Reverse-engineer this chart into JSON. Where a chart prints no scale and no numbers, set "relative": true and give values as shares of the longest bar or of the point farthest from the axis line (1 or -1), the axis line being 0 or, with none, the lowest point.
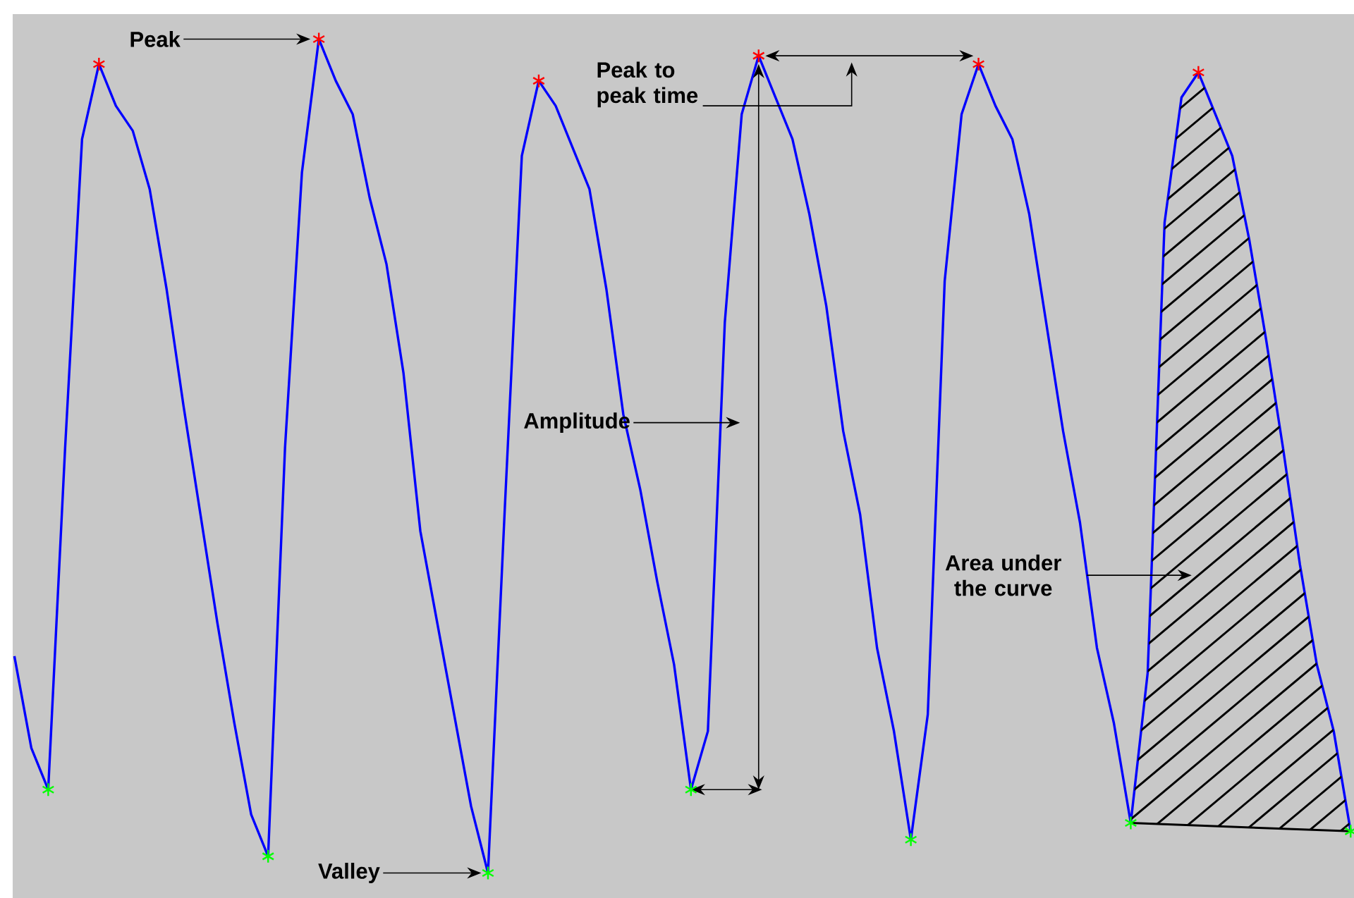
{
  "chart_data": {
    "type": "line",
    "relative": true,
    "categories": [
      null,
      null,
      null,
      null,
      null,
      null,
      null,
      null,
      null,
      null,
      null,
      null,
      null,
      null,
      null,
      null,
      null,
      null,
      null,
      null,
      null,
      null,
      null,
      null,
      null,
      null,
      null,
      null,
      null,
      null,
      null,
      null,
      null,
      null,
      null,
      null,
      null,
      null,
      null,
      null,
      null,
      null,
      null,
      null,
      null,
      null,
      null,
      null,
      null,
      null,
      null,
      null,
      null,
      null,
      null,
      null,
      null,
      null,
      null,
      null,
      null,
      null,
      null,
      null,
      null,
      null,
      null,
      null,
      null,
      null,
      null,
      null,
      null,
      null,
      null,
      null,
      null,
      null,
      null,
      null
    ],
    "series": [
      {
        "color": "#0000ff",
        "line_style": "solid",
        "values": [
          0.26,
          0.15,
          0.1,
          0.51,
          0.88,
          0.97,
          0.92,
          0.89,
          0.82,
          0.7,
          0.56,
          0.43,
          0.3,
          0.18,
          0.07,
          0.02,
          0.51,
          0.84,
          1.0,
          0.95,
          0.91,
          0.81,
          0.73,
          0.6,
          0.41,
          0.3,
          0.19,
          0.08,
          0.0,
          0.44,
          0.86,
          0.95,
          0.92,
          0.87,
          0.82,
          0.7,
          0.55,
          0.46,
          0.35,
          0.25,
          0.1,
          0.17,
          0.66,
          0.91,
          0.98,
          0.93,
          0.88,
          0.79,
          0.68,
          0.53,
          0.43,
          0.27,
          0.17,
          0.04,
          0.19,
          0.71,
          0.91,
          0.97,
          0.92,
          0.88,
          0.79,
          0.66,
          0.53,
          0.42,
          0.27,
          0.18,
          0.06,
          0.24,
          0.78,
          0.93,
          0.96,
          0.91,
          0.86,
          0.76,
          0.64,
          0.51,
          0.37,
          0.25,
          0.17,
          0.05
        ]
      }
    ],
    "annotations": [
      "Peak",
      "Valley",
      "Amplitude",
      "Peak to peak time",
      "Area under the curve"
    ]
  }
}
